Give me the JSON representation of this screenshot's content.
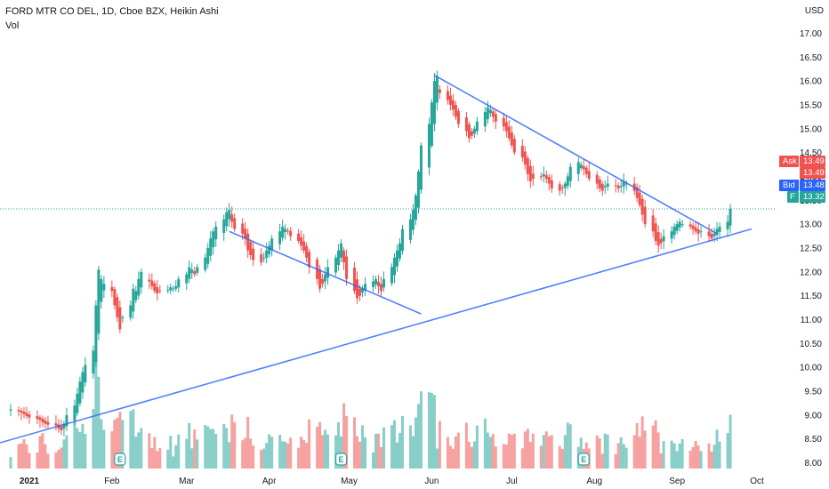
{
  "header": {
    "title": "FORD MTR CO DEL, 1D, Cboe BZX, Heikin Ashi",
    "volume_label": "Vol"
  },
  "price_scale": {
    "currency": "USD"
  },
  "price_tags": {
    "ask_label": "Ask",
    "ask_value": "13.49",
    "extra_value": "13.49",
    "bid_label": "Bid",
    "bid_value": "13.48",
    "symbol_label": "F",
    "last_value": "13.32"
  },
  "colors": {
    "up": "#26a69a",
    "down": "#ef5350",
    "trendline": "#2962ff",
    "ask": "#ef5350",
    "bid": "#2962ff",
    "last": "#26a69a"
  },
  "earnings_marker": "E",
  "chart_data": {
    "type": "candlestick",
    "style": "Heikin Ashi",
    "interval": "1D",
    "ylim": [
      7.75,
      17.25
    ],
    "y_ticks": [
      8.0,
      8.5,
      9.0,
      9.5,
      10.0,
      10.5,
      11.0,
      11.5,
      12.0,
      12.5,
      13.0,
      13.5,
      14.0,
      14.5,
      15.0,
      15.5,
      16.0,
      16.5,
      17.0
    ],
    "y_tick_labels": [
      "8.00",
      "8.50",
      "9.00",
      "9.50",
      "10.00",
      "10.50",
      "11.00",
      "11.50",
      "12.00",
      "12.50",
      "13.00",
      "13.50",
      "14.00",
      "14.50",
      "15.00",
      "15.50",
      "16.00",
      "16.50",
      "17.00"
    ],
    "x_tick_labels": [
      "2021",
      "Feb",
      "Mar",
      "Apr",
      "May",
      "Jun",
      "Jul",
      "Aug",
      "Sep",
      "Oct"
    ],
    "x_range": [
      "2020-12-21",
      "2021-10-08"
    ],
    "x_ticks": [
      "2021-01-01",
      "2021-02-01",
      "2021-03-01",
      "2021-04-01",
      "2021-05-01",
      "2021-06-01",
      "2021-07-01",
      "2021-08-01",
      "2021-09-01",
      "2021-10-01"
    ],
    "grid": false,
    "series": [
      {
        "name": "F",
        "closes": [
          9.12,
          9.08,
          9.05,
          9.02,
          8.98,
          8.95,
          8.92,
          8.9,
          8.85,
          8.82,
          8.8,
          8.78,
          8.72,
          8.68,
          8.82,
          9.0,
          9.2,
          9.45,
          9.7,
          9.9,
          10.05,
          10.35,
          11.3,
          12.05,
          11.85,
          11.75,
          11.6,
          11.3,
          11.05,
          10.8,
          11.05,
          11.3,
          11.65,
          11.6,
          11.85,
          12.0,
          11.8,
          11.7,
          11.6,
          11.55,
          11.6,
          11.62,
          11.68,
          11.65,
          11.7,
          11.85,
          11.95,
          12.1,
          12.05,
          11.95,
          12.1,
          12.3,
          12.5,
          12.7,
          12.85,
          12.95,
          13.1,
          13.25,
          13.3,
          13.05,
          12.9,
          12.8,
          12.7,
          12.45,
          12.35,
          12.25,
          12.2,
          12.3,
          12.45,
          12.55,
          12.7,
          12.85,
          12.95,
          12.9,
          12.85,
          12.75,
          12.65,
          12.55,
          12.45,
          12.3,
          12.1,
          11.85,
          11.65,
          11.75,
          11.95,
          12.1,
          12.3,
          12.45,
          12.6,
          12.2,
          11.85,
          11.6,
          11.45,
          11.5,
          11.65,
          11.75,
          11.8,
          11.85,
          11.7,
          11.6,
          11.85,
          12.1,
          12.3,
          12.45,
          12.6,
          12.9,
          13.1,
          13.3,
          13.6,
          14.1,
          14.65,
          15.1,
          15.55,
          16.0,
          16.1,
          15.75,
          15.6,
          15.5,
          15.4,
          15.25,
          15.1,
          14.95,
          14.8,
          14.85,
          15.0,
          15.15,
          15.35,
          15.45,
          15.4,
          15.25,
          15.15,
          15.05,
          14.95,
          14.8,
          14.65,
          14.5,
          14.4,
          14.25,
          14.05,
          13.9,
          13.95,
          14.0,
          14.05,
          13.95,
          13.85,
          13.75,
          13.7,
          13.75,
          13.85,
          14.0,
          14.2,
          14.3,
          14.25,
          14.15,
          14.05,
          13.95,
          13.85,
          13.75,
          13.7,
          13.8,
          13.85,
          13.8,
          13.75,
          13.8,
          13.9,
          13.85,
          13.7,
          13.55,
          13.4,
          13.2,
          13.0,
          12.85,
          12.65,
          12.55,
          12.6,
          12.75,
          12.85,
          12.95,
          13.0,
          13.05,
          13.0,
          12.95,
          12.9,
          12.85,
          12.8,
          12.85,
          12.75,
          12.7,
          12.8,
          12.9,
          12.95,
          13.05,
          13.32
        ],
        "volume_max": 2.9,
        "volume_min": 0.45
      }
    ],
    "trendlines": [
      {
        "from": [
          "2020-12-21",
          8.42
        ],
        "to": [
          "2021-09-29",
          12.9
        ]
      },
      {
        "from": [
          "2021-03-17",
          12.85
        ],
        "to": [
          "2021-05-28",
          11.12
        ]
      },
      {
        "from": [
          "2021-06-02",
          16.12
        ],
        "to": [
          "2021-09-16",
          12.8
        ]
      }
    ],
    "earnings_dates": [
      "2021-02-04",
      "2021-04-28",
      "2021-07-28"
    ]
  }
}
